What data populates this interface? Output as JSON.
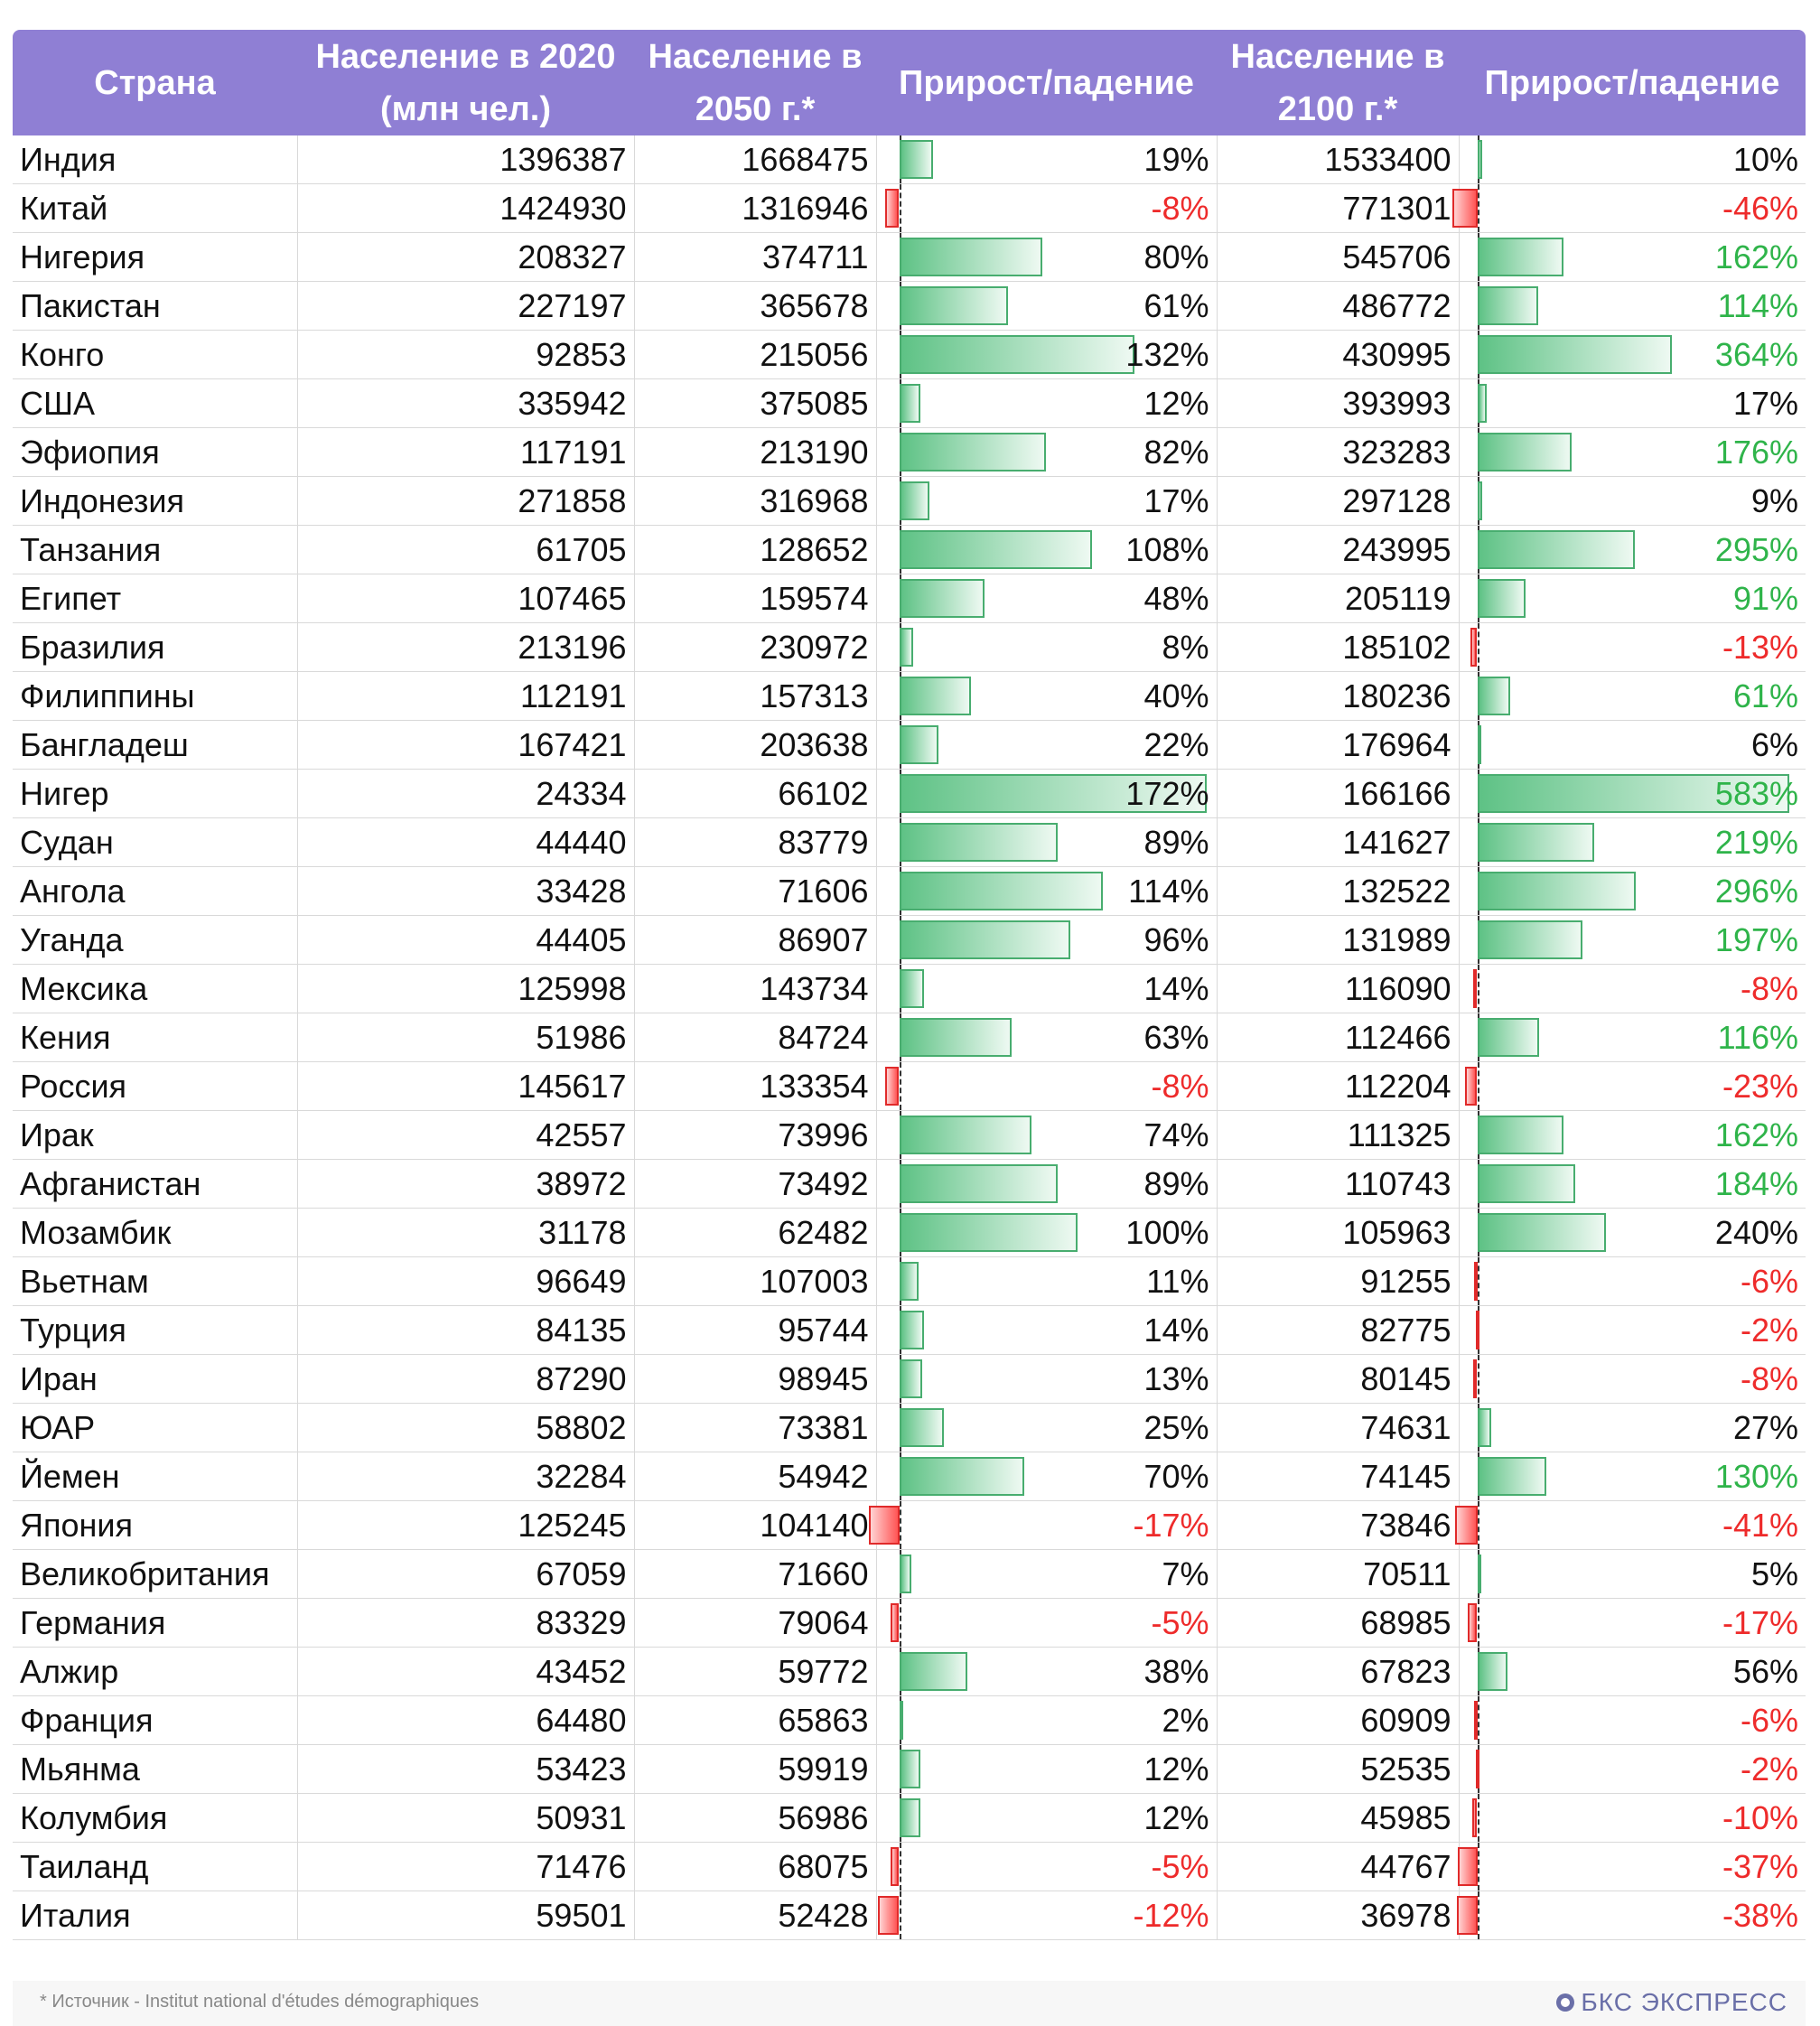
{
  "table": {
    "headers": {
      "country": "Страна",
      "pop2020_l1": "Население в 2020",
      "pop2020_l2": "(млн чел.)",
      "pop2050_l1": "Население в",
      "pop2050_l2": "2050 г.*",
      "growth2050": "Прирост/падение",
      "pop2100_l1": "Население в",
      "pop2100_l2": "2100 г.*",
      "growth2100": "Прирост/падение"
    },
    "rows": [
      {
        "country": "Индия",
        "pop2020": "1396387",
        "pop2050": "1668475",
        "g2050": "19%",
        "pop2100": "1533400",
        "g2100": "10%"
      },
      {
        "country": "Китай",
        "pop2020": "1424930",
        "pop2050": "1316946",
        "g2050": "-8%",
        "pop2100": "771301",
        "g2100": "-46%"
      },
      {
        "country": "Нигерия",
        "pop2020": "208327",
        "pop2050": "374711",
        "g2050": "80%",
        "pop2100": "545706",
        "g2100": "162%"
      },
      {
        "country": "Пакистан",
        "pop2020": "227197",
        "pop2050": "365678",
        "g2050": "61%",
        "pop2100": "486772",
        "g2100": "114%"
      },
      {
        "country": "Конго",
        "pop2020": "92853",
        "pop2050": "215056",
        "g2050": "132%",
        "pop2100": "430995",
        "g2100": "364%"
      },
      {
        "country": "США",
        "pop2020": "335942",
        "pop2050": "375085",
        "g2050": "12%",
        "pop2100": "393993",
        "g2100": "17%"
      },
      {
        "country": "Эфиопия",
        "pop2020": "117191",
        "pop2050": "213190",
        "g2050": "82%",
        "pop2100": "323283",
        "g2100": "176%"
      },
      {
        "country": "Индонезия",
        "pop2020": "271858",
        "pop2050": "316968",
        "g2050": "17%",
        "pop2100": "297128",
        "g2100": "9%"
      },
      {
        "country": "Танзания",
        "pop2020": "61705",
        "pop2050": "128652",
        "g2050": "108%",
        "pop2100": "243995",
        "g2100": "295%"
      },
      {
        "country": "Египет",
        "pop2020": "107465",
        "pop2050": "159574",
        "g2050": "48%",
        "pop2100": "205119",
        "g2100": "91%"
      },
      {
        "country": "Бразилия",
        "pop2020": "213196",
        "pop2050": "230972",
        "g2050": "8%",
        "pop2100": "185102",
        "g2100": "-13%"
      },
      {
        "country": "Филиппины",
        "pop2020": "112191",
        "pop2050": "157313",
        "g2050": "40%",
        "pop2100": "180236",
        "g2100": "61%"
      },
      {
        "country": "Бангладеш",
        "pop2020": "167421",
        "pop2050": "203638",
        "g2050": "22%",
        "pop2100": "176964",
        "g2100": "6%"
      },
      {
        "country": "Нигер",
        "pop2020": "24334",
        "pop2050": "66102",
        "g2050": "172%",
        "pop2100": "166166",
        "g2100": "583%"
      },
      {
        "country": "Судан",
        "pop2020": "44440",
        "pop2050": "83779",
        "g2050": "89%",
        "pop2100": "141627",
        "g2100": "219%"
      },
      {
        "country": "Ангола",
        "pop2020": "33428",
        "pop2050": "71606",
        "g2050": "114%",
        "pop2100": "132522",
        "g2100": "296%"
      },
      {
        "country": "Уганда",
        "pop2020": "44405",
        "pop2050": "86907",
        "g2050": "96%",
        "pop2100": "131989",
        "g2100": "197%"
      },
      {
        "country": "Мексика",
        "pop2020": "125998",
        "pop2050": "143734",
        "g2050": "14%",
        "pop2100": "116090",
        "g2100": "-8%"
      },
      {
        "country": "Кения",
        "pop2020": "51986",
        "pop2050": "84724",
        "g2050": "63%",
        "pop2100": "112466",
        "g2100": "116%"
      },
      {
        "country": "Россия",
        "pop2020": "145617",
        "pop2050": "133354",
        "g2050": "-8%",
        "pop2100": "112204",
        "g2100": "-23%"
      },
      {
        "country": "Ирак",
        "pop2020": "42557",
        "pop2050": "73996",
        "g2050": "74%",
        "pop2100": "111325",
        "g2100": "162%"
      },
      {
        "country": "Афганистан",
        "pop2020": "38972",
        "pop2050": "73492",
        "g2050": "89%",
        "pop2100": "110743",
        "g2100": "184%"
      },
      {
        "country": "Мозамбик",
        "pop2020": "31178",
        "pop2050": "62482",
        "g2050": "100%",
        "pop2100": "105963",
        "g2100": "240%"
      },
      {
        "country": "Вьетнам",
        "pop2020": "96649",
        "pop2050": "107003",
        "g2050": "11%",
        "pop2100": "91255",
        "g2100": "-6%"
      },
      {
        "country": "Турция",
        "pop2020": "84135",
        "pop2050": "95744",
        "g2050": "14%",
        "pop2100": "82775",
        "g2100": "-2%"
      },
      {
        "country": "Иран",
        "pop2020": "87290",
        "pop2050": "98945",
        "g2050": "13%",
        "pop2100": "80145",
        "g2100": "-8%"
      },
      {
        "country": "ЮАР",
        "pop2020": "58802",
        "pop2050": "73381",
        "g2050": "25%",
        "pop2100": "74631",
        "g2100": "27%"
      },
      {
        "country": "Йемен",
        "pop2020": "32284",
        "pop2050": "54942",
        "g2050": "70%",
        "pop2100": "74145",
        "g2100": "130%"
      },
      {
        "country": "Япония",
        "pop2020": "125245",
        "pop2050": "104140",
        "g2050": "-17%",
        "pop2100": "73846",
        "g2100": "-41%"
      },
      {
        "country": "Великобритания",
        "pop2020": "67059",
        "pop2050": "71660",
        "g2050": "7%",
        "pop2100": "70511",
        "g2100": "5%"
      },
      {
        "country": "Германия",
        "pop2020": "83329",
        "pop2050": "79064",
        "g2050": "-5%",
        "pop2100": "68985",
        "g2100": "-17%"
      },
      {
        "country": "Алжир",
        "pop2020": "43452",
        "pop2050": "59772",
        "g2050": "38%",
        "pop2100": "67823",
        "g2100": "56%"
      },
      {
        "country": "Франция",
        "pop2020": "64480",
        "pop2050": "65863",
        "g2050": "2%",
        "pop2100": "60909",
        "g2100": "-6%"
      },
      {
        "country": "Мьянма",
        "pop2020": "53423",
        "pop2050": "59919",
        "g2050": "12%",
        "pop2100": "52535",
        "g2100": "-2%"
      },
      {
        "country": "Колумбия",
        "pop2020": "50931",
        "pop2050": "56986",
        "g2050": "12%",
        "pop2100": "45985",
        "g2100": "-10%"
      },
      {
        "country": "Таиланд",
        "pop2020": "71476",
        "pop2050": "68075",
        "g2050": "-5%",
        "pop2100": "44767",
        "g2100": "-37%"
      },
      {
        "country": "Италия",
        "pop2020": "59501",
        "pop2050": "52428",
        "g2050": "-12%",
        "pop2100": "36978",
        "g2100": "-38%"
      }
    ]
  },
  "chart_data": {
    "type": "table",
    "columns": [
      "Страна",
      "Население в 2020 (млн чел.)",
      "Население в 2050 г.*",
      "Прирост/падение",
      "Население в 2100 г.*",
      "Прирост/падение"
    ],
    "growth2050_percent": [
      19,
      -8,
      80,
      61,
      132,
      12,
      82,
      17,
      108,
      48,
      8,
      40,
      22,
      172,
      89,
      114,
      96,
      14,
      63,
      -8,
      74,
      89,
      100,
      11,
      14,
      13,
      25,
      70,
      -17,
      7,
      -5,
      38,
      2,
      12,
      12,
      -5,
      -12
    ],
    "growth2100_percent": [
      10,
      -46,
      162,
      114,
      364,
      17,
      176,
      9,
      295,
      91,
      -13,
      61,
      6,
      583,
      219,
      296,
      197,
      -8,
      116,
      -23,
      162,
      184,
      240,
      -6,
      -2,
      -8,
      27,
      130,
      -41,
      5,
      -17,
      56,
      -6,
      -2,
      -10,
      -37,
      -38
    ],
    "growth2100_colored_rows": [
      1,
      2,
      3,
      4,
      6,
      8,
      9,
      10,
      11,
      13,
      14,
      15,
      16,
      17,
      18,
      19,
      20,
      21,
      23,
      24,
      25,
      27,
      28,
      30,
      32,
      33,
      34,
      35,
      36
    ],
    "colors": {
      "header_bg": "#8f7fd4",
      "bar_positive": "#5ec285",
      "bar_negative": "#ff5555",
      "text_negative": "#ee2b2b",
      "text_positive_green": "#2fb44a"
    }
  },
  "footer": {
    "source": "*  Источник - Institut national d'études démographiques",
    "logo": "БКС ЭКСПРЕСС"
  }
}
